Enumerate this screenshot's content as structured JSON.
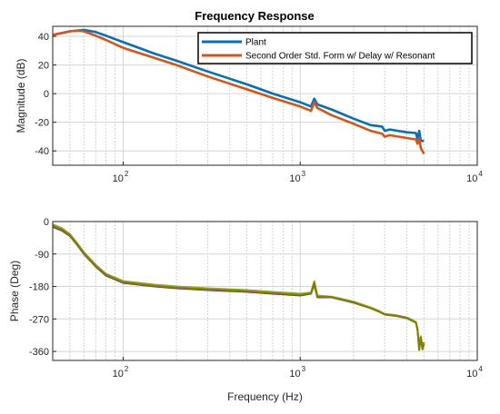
{
  "chart_data": [
    {
      "type": "line",
      "title": "Frequency Response",
      "xlabel": "",
      "ylabel": "Magnitude (dB)",
      "xscale": "log",
      "xlim": [
        40,
        10000
      ],
      "ylim": [
        -50,
        47
      ],
      "yticks": [
        40,
        20,
        0,
        -20,
        -40
      ],
      "xticks": [
        {
          "base": "10",
          "exp": "2",
          "value": 100
        },
        {
          "base": "10",
          "exp": "3",
          "value": 1000
        },
        {
          "base": "10",
          "exp": "4",
          "value": 10000
        }
      ],
      "grid": true,
      "legend": "top-right",
      "series": [
        {
          "name": "Plant",
          "color": "#0072BD",
          "x": [
            40,
            50,
            60,
            70,
            80,
            100,
            150,
            200,
            300,
            500,
            700,
            1000,
            1150,
            1200,
            1250,
            1500,
            2000,
            2500,
            2900,
            3000,
            3200,
            4000,
            4500,
            4600,
            4700,
            4800,
            5000
          ],
          "y": [
            41,
            43.5,
            44.5,
            43,
            40.5,
            36,
            28,
            23,
            15.5,
            6.5,
            0,
            -6,
            -9,
            -3.5,
            -7.5,
            -11,
            -17.5,
            -22,
            -23,
            -26,
            -25,
            -27,
            -27.5,
            -32,
            -26,
            -33,
            -33
          ]
        },
        {
          "name": "Second Order Std. Form w/ Delay w/ Resonant",
          "color": "#D95319",
          "x": [
            40,
            50,
            55,
            60,
            70,
            80,
            100,
            150,
            200,
            300,
            500,
            700,
            1000,
            1150,
            1200,
            1250,
            1500,
            2000,
            2500,
            2900,
            3000,
            3200,
            4000,
            4500,
            4600,
            4700,
            4800,
            5000
          ],
          "y": [
            41,
            43.5,
            44,
            43.5,
            40.5,
            37.5,
            32,
            25,
            20,
            12,
            3,
            -3,
            -9,
            -12,
            -6,
            -10,
            -15,
            -21,
            -26,
            -28,
            -30,
            -29,
            -31,
            -32,
            -35,
            -31,
            -38,
            -42
          ]
        }
      ]
    },
    {
      "type": "line",
      "title": "",
      "xlabel": "Frequency (Hz)",
      "ylabel": "Phase (Deg)",
      "xscale": "log",
      "xlim": [
        40,
        10000
      ],
      "ylim": [
        -385,
        0
      ],
      "yticks": [
        0,
        -90,
        -180,
        -270,
        -360
      ],
      "xticks": [
        {
          "base": "10",
          "exp": "2",
          "value": 100
        },
        {
          "base": "10",
          "exp": "3",
          "value": 1000
        },
        {
          "base": "10",
          "exp": "4",
          "value": 10000
        }
      ],
      "grid": true,
      "legend": "none",
      "series": [
        {
          "color": "#7E2F8E",
          "x": [
            40,
            45,
            50,
            55,
            60,
            70,
            80,
            100,
            150,
            200,
            300,
            500,
            700,
            1000,
            1150,
            1200,
            1250,
            1500,
            2000,
            2500,
            2800,
            3000,
            3500,
            4000,
            4500,
            4600,
            4700,
            4800,
            4900,
            5000
          ],
          "y": [
            -15,
            -25,
            -40,
            -65,
            -90,
            -125,
            -150,
            -170,
            -180,
            -185,
            -190,
            -195,
            -200,
            -205,
            -200,
            -175,
            -210,
            -210,
            -225,
            -240,
            -250,
            -258,
            -262,
            -268,
            -280,
            -300,
            -350,
            -320,
            -350,
            -335
          ]
        },
        {
          "color": "#77AC30",
          "x": [
            40,
            45,
            50,
            55,
            60,
            70,
            80,
            100,
            150,
            200,
            300,
            500,
            700,
            1000,
            1150,
            1200,
            1250,
            1500,
            2000,
            2500,
            2800,
            3000,
            3500,
            4000,
            4500,
            4600,
            4700,
            4800,
            4900,
            5000
          ],
          "y": [
            -8,
            -18,
            -35,
            -60,
            -85,
            -120,
            -145,
            -165,
            -175,
            -180,
            -185,
            -190,
            -195,
            -200,
            -197,
            -165,
            -205,
            -208,
            -222,
            -238,
            -248,
            -256,
            -260,
            -266,
            -278,
            -298,
            -355,
            -320,
            -355,
            -340
          ]
        },
        {
          "color": "#C9B400",
          "x": [
            40,
            45,
            50,
            55,
            60,
            70,
            80,
            100,
            150,
            200,
            300,
            500,
            700,
            1000,
            1150,
            1200,
            1250,
            1500,
            2000,
            2500,
            2800,
            3000,
            3500,
            4000,
            4500,
            4600,
            4700,
            4800,
            4900,
            5000
          ],
          "y": [
            -10,
            -20,
            -37,
            -62,
            -87,
            -122,
            -147,
            -167,
            -177,
            -182,
            -187,
            -192,
            -197,
            -202,
            -198,
            -168,
            -207,
            -209,
            -223,
            -239,
            -249,
            -257,
            -261,
            -267,
            -279,
            -299,
            -352,
            -318,
            -352,
            -338
          ]
        },
        {
          "color": "#7F7F00",
          "x": [
            40,
            45,
            50,
            55,
            60,
            70,
            80,
            100,
            150,
            200,
            300,
            500,
            700,
            1000,
            1150,
            1200,
            1250,
            1500,
            2000,
            2500,
            2800,
            3000,
            3500,
            4000,
            4500,
            4600,
            4700,
            4800,
            4900,
            5000
          ],
          "y": [
            -12,
            -22,
            -38,
            -63,
            -88,
            -123,
            -148,
            -168,
            -178,
            -183,
            -188,
            -193,
            -198,
            -203,
            -199,
            -170,
            -208,
            -209,
            -224,
            -240,
            -250,
            -257,
            -261,
            -267,
            -280,
            -300,
            -356,
            -320,
            -353,
            -340
          ]
        }
      ]
    }
  ]
}
